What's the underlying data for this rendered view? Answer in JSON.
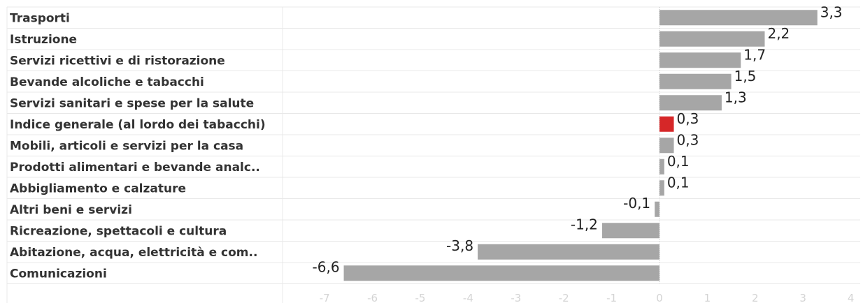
{
  "chart_data": {
    "type": "bar",
    "orientation": "horizontal",
    "categories": [
      "Trasporti",
      "Istruzione",
      "Servizi ricettivi e di ristorazione",
      "Bevande alcoliche e tabacchi",
      "Servizi sanitari e spese per la salute",
      "Indice generale (al lordo dei tabacchi)",
      "Mobili, articoli e servizi per la casa",
      "Prodotti alimentari e bevande analc..",
      "Abbigliamento e calzature",
      "Altri beni e servizi",
      "Ricreazione, spettacoli e cultura",
      "Abitazione, acqua, elettricità e com..",
      "Comunicazioni"
    ],
    "values": [
      3.3,
      2.2,
      1.7,
      1.5,
      1.3,
      0.3,
      0.3,
      0.1,
      0.1,
      -0.1,
      -1.2,
      -3.8,
      -6.6
    ],
    "value_labels": [
      "3,3",
      "2,2",
      "1,7",
      "1,5",
      "1,3",
      "0,3",
      "0,3",
      "0,1",
      "0,1",
      "-0,1",
      "-1,2",
      "-3,8",
      "-6,6"
    ],
    "highlight_category": "Indice generale (al lordo dei tabacchi)",
    "xlim": [
      -7,
      4
    ],
    "xticks": [
      -7,
      -6,
      -5,
      -4,
      -3,
      -2,
      -1,
      0,
      1,
      2,
      3,
      4
    ],
    "title": "",
    "xlabel": "",
    "ylabel": "",
    "grid": "horizontal row separators",
    "colors": {
      "bar": "#a6a6a6",
      "highlight": "#d62728",
      "separator": "#e8e8e8",
      "zero_line": "#bdbdbd",
      "tick_text": "#d4d4d4",
      "label_text": "#333333"
    }
  }
}
